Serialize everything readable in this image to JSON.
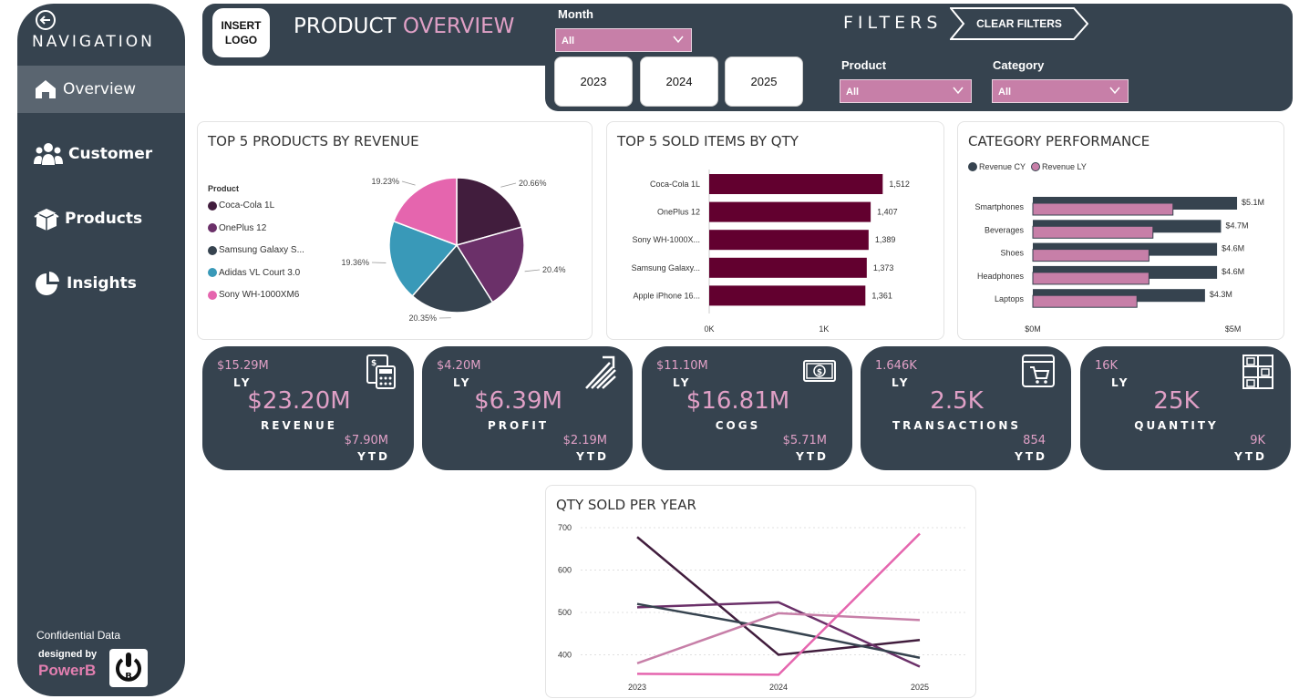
{
  "nav": {
    "title": "NAVIGATION",
    "items": [
      {
        "label": "Overview",
        "icon": "home-icon"
      },
      {
        "label": "Customer",
        "icon": "users-icon"
      },
      {
        "label": "Products",
        "icon": "box-icon"
      },
      {
        "label": "Insights",
        "icon": "pie-icon"
      }
    ],
    "confidential": "Confidential Data",
    "designed_by": "designed by",
    "brand": "PowerB"
  },
  "header": {
    "logo_line1": "INSERT",
    "logo_line2": "LOGO",
    "title_main": "PRODUCT",
    "title_highlight": "OVERVIEW",
    "filters_title": "FILTERS",
    "clear_filters": "CLEAR FILTERS"
  },
  "filters": {
    "month": {
      "label": "Month",
      "value": "All"
    },
    "product": {
      "label": "Product",
      "value": "All"
    },
    "category": {
      "label": "Category",
      "value": "All"
    },
    "years": [
      "2023",
      "2024",
      "2025"
    ]
  },
  "colors": {
    "navy": "#36434f",
    "pink": "#e0a0c6",
    "maroon": "#62002f",
    "plum": "#411d3d",
    "purple": "#6b3069",
    "teal": "#3999b8",
    "hotpink": "#e565ae",
    "rose": "#c77fa8"
  },
  "chart_data": [
    {
      "type": "pie",
      "title": "TOP 5 PRODUCTS BY REVENUE",
      "legend_title": "Product",
      "slices": [
        {
          "label": "Coca-Cola 1L",
          "value": 20.66,
          "display": "20.66%",
          "color": "#411d3d"
        },
        {
          "label": "OnePlus 12",
          "value": 20.4,
          "display": "20.4%",
          "color": "#6b3069"
        },
        {
          "label": "Samsung Galaxy S...",
          "value": 20.35,
          "display": "20.35%",
          "color": "#36434f"
        },
        {
          "label": "Adidas VL Court 3.0",
          "value": 19.36,
          "display": "19.36%",
          "color": "#3999b8"
        },
        {
          "label": "Sony WH-1000XM6",
          "value": 19.23,
          "display": "19.23%",
          "color": "#e565ae"
        }
      ]
    },
    {
      "type": "bar",
      "title": "TOP 5 SOLD ITEMS BY QTY",
      "categories": [
        "Coca-Cola 1L",
        "OnePlus 12",
        "Sony WH-1000X...",
        "Samsung Galaxy...",
        "Apple iPhone 16..."
      ],
      "values": [
        1512,
        1407,
        1389,
        1373,
        1361
      ],
      "value_labels": [
        "1,512",
        "1,407",
        "1,389",
        "1,373",
        "1,361"
      ],
      "xticks": [
        "0K",
        "1K"
      ],
      "xlim": [
        0,
        1700
      ]
    },
    {
      "type": "bar",
      "title": "CATEGORY PERFORMANCE",
      "categories": [
        "Smartphones",
        "Beverages",
        "Shoes",
        "Headphones",
        "Laptops"
      ],
      "series": [
        {
          "name": "Revenue CY",
          "values": [
            5.1,
            4.7,
            4.6,
            4.6,
            4.3
          ],
          "labels": [
            "$5.1M",
            "$4.7M",
            "$4.6M",
            "$4.6M",
            "$4.3M"
          ],
          "color": "#36434f"
        },
        {
          "name": "Revenue LY",
          "values": [
            3.5,
            3.0,
            2.9,
            2.9,
            2.6
          ],
          "color": "#c77fa8"
        }
      ],
      "xticks": [
        "$0M",
        "$5M"
      ],
      "xlim": [
        0,
        5.6
      ]
    },
    {
      "type": "line",
      "title": "QTY SOLD PER YEAR",
      "x": [
        "2023",
        "2024",
        "2025"
      ],
      "yticks": [
        "700",
        "600",
        "500",
        "400"
      ],
      "ylim": [
        350,
        720
      ],
      "series": [
        {
          "color": "#411d3d",
          "values": [
            678,
            400,
            435
          ]
        },
        {
          "color": "#6b3069",
          "values": [
            512,
            524,
            372
          ]
        },
        {
          "color": "#36434f",
          "values": [
            520,
            460,
            393
          ]
        },
        {
          "color": "#c77fa8",
          "values": [
            380,
            498,
            482
          ]
        },
        {
          "color": "#e565ae",
          "values": [
            355,
            353,
            686
          ]
        }
      ]
    }
  ],
  "kpis": [
    {
      "ly_value": "$15.29M",
      "ly_label": "LY",
      "value": "$23.20M",
      "name": "REVENUE",
      "ytd_value": "$7.90M",
      "ytd_label": "YTD",
      "icon": "calculator-icon"
    },
    {
      "ly_value": "$4.20M",
      "ly_label": "LY",
      "value": "$6.39M",
      "name": "PROFIT",
      "ytd_value": "$2.19M",
      "ytd_label": "YTD",
      "icon": "growth-arrow-icon"
    },
    {
      "ly_value": "$11.10M",
      "ly_label": "LY",
      "value": "$16.81M",
      "name": "COGS",
      "ytd_value": "$5.71M",
      "ytd_label": "YTD",
      "icon": "money-icon"
    },
    {
      "ly_value": "1.646K",
      "ly_label": "LY",
      "value": "2.5K",
      "name": "TRANSACTIONS",
      "ytd_value": "854",
      "ytd_label": "YTD",
      "icon": "cart-icon"
    },
    {
      "ly_value": "16K",
      "ly_label": "LY",
      "value": "25K",
      "name": "QUANTITY",
      "ytd_value": "9K",
      "ytd_label": "YTD",
      "icon": "shelves-icon"
    }
  ]
}
